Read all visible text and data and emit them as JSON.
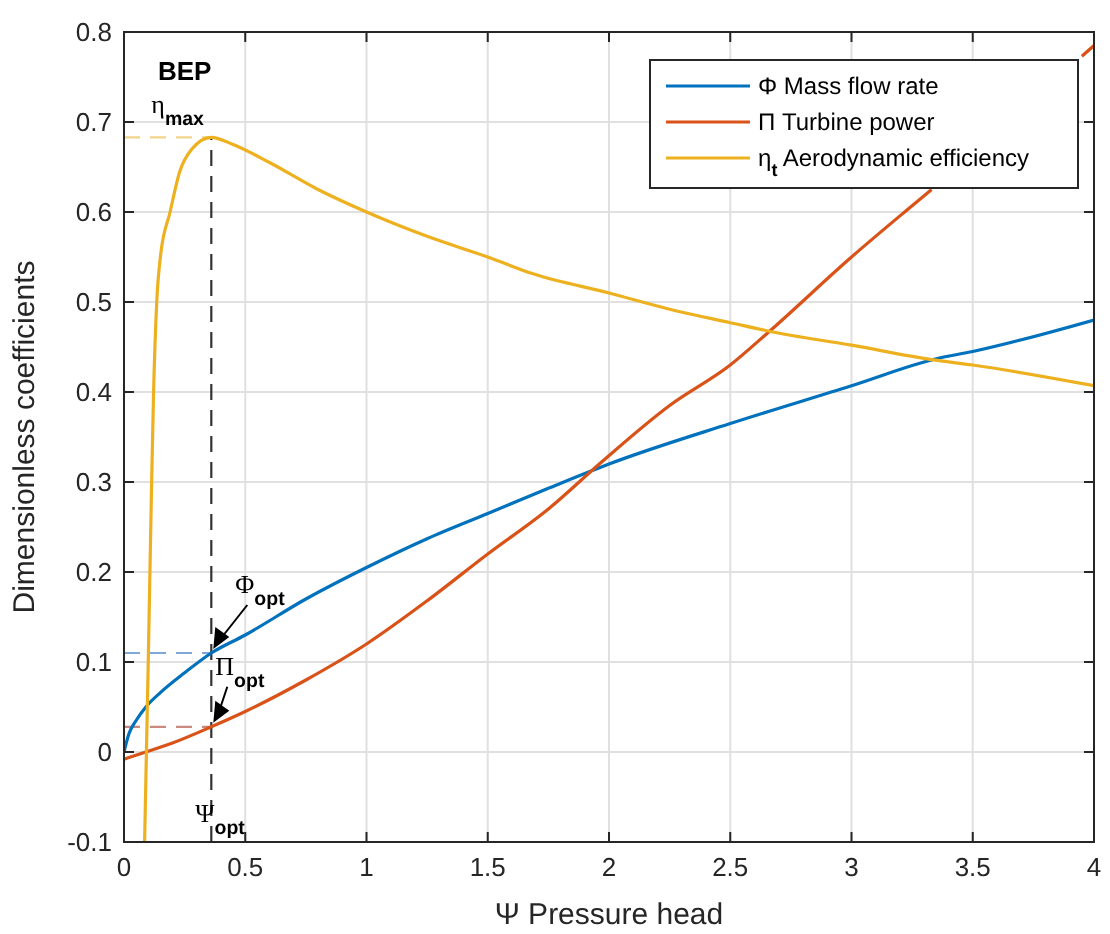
{
  "chart_data": {
    "type": "line",
    "xlabel": "Ψ Pressure head",
    "ylabel": "Dimensionless coefficients",
    "xlim": [
      0,
      4
    ],
    "ylim": [
      -0.1,
      0.8
    ],
    "xticks": [
      0,
      0.5,
      1,
      1.5,
      2,
      2.5,
      3,
      3.5,
      4
    ],
    "yticks": [
      -0.1,
      0,
      0.1,
      0.2,
      0.3,
      0.4,
      0.5,
      0.6,
      0.7,
      0.8
    ],
    "grid": true,
    "legend": "top right",
    "marker": "none",
    "line_style": "solid",
    "series": [
      {
        "name": "Φ Mass flow rate",
        "color": "#0072bd",
        "x": [
          0,
          0.02,
          0.05,
          0.09,
          0.15,
          0.25,
          0.36,
          0.5,
          0.75,
          1,
          1.25,
          1.5,
          1.75,
          2,
          2.5,
          3,
          3.35,
          3.5,
          4
        ],
        "values": [
          0,
          0.02,
          0.035,
          0.05,
          0.066,
          0.088,
          0.11,
          0.13,
          0.17,
          0.205,
          0.237,
          0.265,
          0.293,
          0.32,
          0.365,
          0.407,
          0.437,
          0.445,
          0.48
        ]
      },
      {
        "name": "Π Turbine power",
        "color": "#d95319",
        "x": [
          0,
          0.09,
          0.2,
          0.36,
          0.5,
          0.75,
          1,
          1.25,
          1.5,
          1.75,
          1.96,
          2.25,
          2.5,
          2.66,
          3,
          3.25,
          3.33,
          3.5,
          3.95,
          4
        ],
        "values": [
          -0.008,
          0,
          0.01,
          0.028,
          0.045,
          0.08,
          0.12,
          0.168,
          0.22,
          0.27,
          0.32,
          0.385,
          0.43,
          0.467,
          0.55,
          0.607,
          0.625,
          null,
          0.773,
          0.785
        ]
      },
      {
        "name": "η$_{t}$ Aerodynamic efficiency",
        "color": "#edb120",
        "x": [
          0.085,
          0.1,
          0.114,
          0.122,
          0.135,
          0.15,
          0.19,
          0.23,
          0.28,
          0.36,
          0.45,
          0.6,
          0.8,
          1,
          1.25,
          1.5,
          1.69,
          2,
          2.25,
          2.5,
          2.67,
          3,
          3.33,
          3.5,
          4
        ],
        "values": [
          -0.1,
          0.1,
          0.3,
          0.4,
          0.5,
          0.55,
          0.6,
          0.645,
          0.67,
          0.683,
          0.675,
          0.655,
          0.625,
          0.6,
          0.573,
          0.55,
          0.531,
          0.51,
          0.492,
          0.477,
          0.467,
          0.452,
          0.436,
          0.43,
          0.407
        ]
      },
      {
        "color": "#333333",
        "line_style": "dashed",
        "x": [
          0.36,
          0.36
        ],
        "values": [
          -0.1,
          0.683
        ]
      },
      {
        "color": "#f3d48a",
        "line_style": "dashed",
        "x": [
          0,
          0.36
        ],
        "values": [
          0.683,
          0.683
        ]
      },
      {
        "color": "#7fa8d8",
        "line_style": "dashed",
        "x": [
          0,
          0.36
        ],
        "values": [
          0.11,
          0.11
        ]
      },
      {
        "color": "#c98a80",
        "line_style": "dashed",
        "x": [
          0,
          0.36
        ],
        "values": [
          0.028,
          0.028
        ]
      }
    ],
    "annotations": [
      "BEP",
      "η$_{max}$",
      "Φ$_{opt}$",
      "Π$_{opt}$",
      "Ψ$_{opt}$"
    ]
  }
}
